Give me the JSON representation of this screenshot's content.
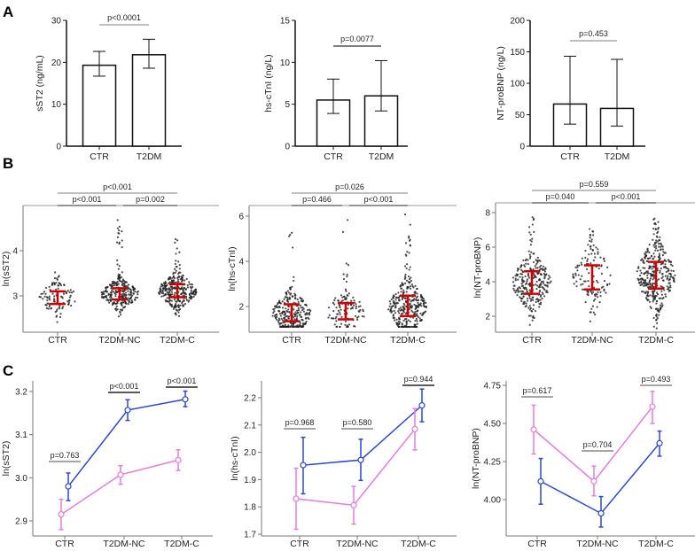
{
  "panels": [
    "A",
    "B",
    "C"
  ],
  "colors": {
    "blue": "#2a47d8",
    "pink": "#e87be0",
    "red": "#d40000",
    "bar_edge": "#111111",
    "bracket": "#888888"
  },
  "chart_data": [
    {
      "panel": "A",
      "type": "bar",
      "ylabel": "sST2 (ng/mL)",
      "categories": [
        "CTR",
        "T2DM"
      ],
      "values": [
        19.3,
        21.8
      ],
      "err_low": [
        16.7,
        18.6
      ],
      "err_high": [
        22.6,
        25.5
      ],
      "ylim": [
        0,
        30
      ],
      "yticks": [
        0,
        10,
        20,
        30
      ],
      "tick_labels": [
        "0",
        "10",
        "20",
        "30"
      ],
      "comparisons": [
        {
          "label": "p<0.0001",
          "from": 0,
          "to": 1
        }
      ]
    },
    {
      "panel": "A",
      "type": "bar",
      "ylabel": "hs-cTnI (ng/L)",
      "categories": [
        "CTR",
        "T2DM"
      ],
      "values": [
        5.5,
        6.0
      ],
      "err_low": [
        3.9,
        4.2
      ],
      "err_high": [
        8.0,
        10.2
      ],
      "ylim": [
        0,
        15
      ],
      "yticks": [
        0,
        5,
        10,
        15
      ],
      "tick_labels": [
        "0",
        "5",
        "10",
        "15"
      ],
      "comparisons": [
        {
          "label": "p=0.0077",
          "from": 0,
          "to": 1
        }
      ]
    },
    {
      "panel": "A",
      "type": "bar",
      "ylabel": "NT-proBNP (ng/L)",
      "categories": [
        "CTR",
        "T2DM"
      ],
      "values": [
        67,
        60
      ],
      "err_low": [
        35,
        32
      ],
      "err_high": [
        143,
        138
      ],
      "ylim": [
        0,
        200
      ],
      "yticks": [
        0,
        50,
        100,
        150,
        200
      ],
      "tick_labels": [
        "0",
        "50",
        "100",
        "150",
        "200"
      ],
      "comparisons": [
        {
          "label": "p=0.453",
          "from": 0,
          "to": 1
        }
      ]
    },
    {
      "panel": "B",
      "type": "scatter",
      "ylabel": "ln(sST2)",
      "categories": [
        "CTR",
        "T2DM-NC",
        "T2DM-C"
      ],
      "center": [
        2.96,
        3.04,
        3.11
      ],
      "q1": [
        2.82,
        2.92,
        2.97
      ],
      "q3": [
        3.1,
        3.17,
        3.26
      ],
      "min": [
        2.42,
        2.38,
        2.3
      ],
      "max": [
        3.6,
        4.85,
        4.28
      ],
      "n": [
        100,
        260,
        300
      ],
      "yticks": [
        3,
        4
      ],
      "tick_labels": [
        "3",
        "4"
      ],
      "ylim": [
        2.2,
        4.95
      ],
      "comparisons": [
        {
          "label": "p<0.001",
          "from": 0,
          "to": 2,
          "level": "top"
        },
        {
          "label": "p<0.001",
          "from": 0,
          "to": 1,
          "level": "low"
        },
        {
          "label": "p=0.002",
          "from": 1,
          "to": 2,
          "level": "low"
        }
      ]
    },
    {
      "panel": "B",
      "type": "scatter",
      "ylabel": "ln(hs-cTnI)",
      "categories": [
        "CTR",
        "T2DM-NC",
        "T2DM-C"
      ],
      "center": [
        1.7,
        1.75,
        1.95
      ],
      "q1": [
        1.35,
        1.43,
        1.58
      ],
      "q3": [
        2.1,
        2.15,
        2.48
      ],
      "min": [
        1.1,
        1.1,
        1.1
      ],
      "max": [
        5.4,
        6.3,
        6.1
      ],
      "n": [
        260,
        110,
        320
      ],
      "yticks": [
        2,
        4,
        6
      ],
      "tick_labels": [
        "2",
        "4",
        "6"
      ],
      "ylim": [
        0.9,
        6.6
      ],
      "comparisons": [
        {
          "label": "p=0.026",
          "from": 0,
          "to": 2,
          "level": "top"
        },
        {
          "label": "p=0.466",
          "from": 0,
          "to": 1,
          "level": "low"
        },
        {
          "label": "p<0.001",
          "from": 1,
          "to": 2,
          "level": "low"
        }
      ]
    },
    {
      "panel": "B",
      "type": "scatter",
      "ylabel": "ln(NT-proBNP)",
      "categories": [
        "CTR",
        "T2DM-NC",
        "T2DM-C"
      ],
      "center": [
        3.95,
        4.25,
        4.4
      ],
      "q1": [
        3.3,
        3.55,
        3.6
      ],
      "q3": [
        4.6,
        4.95,
        5.15
      ],
      "min": [
        1.5,
        1.3,
        1.3
      ],
      "max": [
        8.1,
        7.3,
        7.95
      ],
      "n": [
        260,
        120,
        330
      ],
      "yticks": [
        2,
        4,
        6,
        8
      ],
      "tick_labels": [
        "2",
        "4",
        "6",
        "8"
      ],
      "ylim": [
        1.0,
        8.5
      ],
      "comparisons": [
        {
          "label": "p=0.559",
          "from": 0,
          "to": 2,
          "level": "top"
        },
        {
          "label": "p=0.040",
          "from": 0,
          "to": 1,
          "level": "low"
        },
        {
          "label": "p<0.001",
          "from": 1,
          "to": 2,
          "level": "low"
        }
      ]
    },
    {
      "panel": "C",
      "type": "line",
      "ylabel": "ln(sST2)",
      "categories": [
        "CTR",
        "T2DM-NC",
        "T2DM-C"
      ],
      "series": [
        {
          "name": "blue",
          "values": [
            2.98,
            3.157,
            3.182
          ],
          "low": [
            2.947,
            3.133,
            3.165
          ],
          "high": [
            3.011,
            3.181,
            3.201
          ]
        },
        {
          "name": "pink",
          "values": [
            2.915,
            3.007,
            3.041
          ],
          "low": [
            2.88,
            2.985,
            3.017
          ],
          "high": [
            2.95,
            3.028,
            3.065
          ]
        }
      ],
      "yticks": [
        2.9,
        3.0,
        3.1,
        3.2
      ],
      "tick_labels": [
        "2.9",
        "3.0",
        "3.1",
        "3.2"
      ],
      "ylim": [
        2.86,
        3.23
      ],
      "comparisons": [
        {
          "label": "p=0.763",
          "group": 0
        },
        {
          "label": "p<0.001",
          "group": 1
        },
        {
          "label": "p<0.001",
          "group": 2
        }
      ]
    },
    {
      "panel": "C",
      "type": "line",
      "ylabel": "ln(hs-cTnI)",
      "categories": [
        "CTR",
        "T2DM-NC",
        "T2DM-C"
      ],
      "series": [
        {
          "name": "blue",
          "values": [
            1.953,
            1.972,
            2.172
          ],
          "low": [
            1.848,
            1.897,
            2.112
          ],
          "high": [
            2.055,
            2.048,
            2.232
          ]
        },
        {
          "name": "pink",
          "values": [
            1.83,
            1.806,
            2.085
          ],
          "low": [
            1.718,
            1.737,
            2.009
          ],
          "high": [
            1.942,
            1.875,
            2.16
          ]
        }
      ],
      "yticks": [
        1.7,
        1.8,
        1.9,
        2.0,
        2.1,
        2.2
      ],
      "tick_labels": [
        "1.7",
        "1.8",
        "1.9",
        "2.0",
        "2.1",
        "2.2"
      ],
      "ylim": [
        1.69,
        2.26
      ],
      "comparisons": [
        {
          "label": "p=0.968",
          "group": 0
        },
        {
          "label": "p=0.580",
          "group": 1
        },
        {
          "label": "p=0.944",
          "group": 2
        }
      ]
    },
    {
      "panel": "C",
      "type": "line",
      "ylabel": "ln(NT-proBNP)",
      "categories": [
        "CTR",
        "T2DM-NC",
        "T2DM-C"
      ],
      "series": [
        {
          "name": "blue",
          "values": [
            4.12,
            3.91,
            4.37
          ],
          "low": [
            3.97,
            3.82,
            4.285
          ],
          "high": [
            4.27,
            4.02,
            4.45
          ]
        },
        {
          "name": "pink",
          "values": [
            4.46,
            4.12,
            4.61
          ],
          "low": [
            4.3,
            4.025,
            4.5
          ],
          "high": [
            4.62,
            4.22,
            4.71
          ]
        }
      ],
      "yticks": [
        4.0,
        4.25,
        4.5,
        4.75
      ],
      "tick_labels": [
        "4.00",
        "4.25",
        "4.50",
        "4.75"
      ],
      "ylim": [
        3.76,
        4.8
      ],
      "comparisons": [
        {
          "label": "p=0.617",
          "group": 0
        },
        {
          "label": "p=0.704",
          "group": 1
        },
        {
          "label": "p=0.493",
          "group": 2
        }
      ]
    }
  ]
}
